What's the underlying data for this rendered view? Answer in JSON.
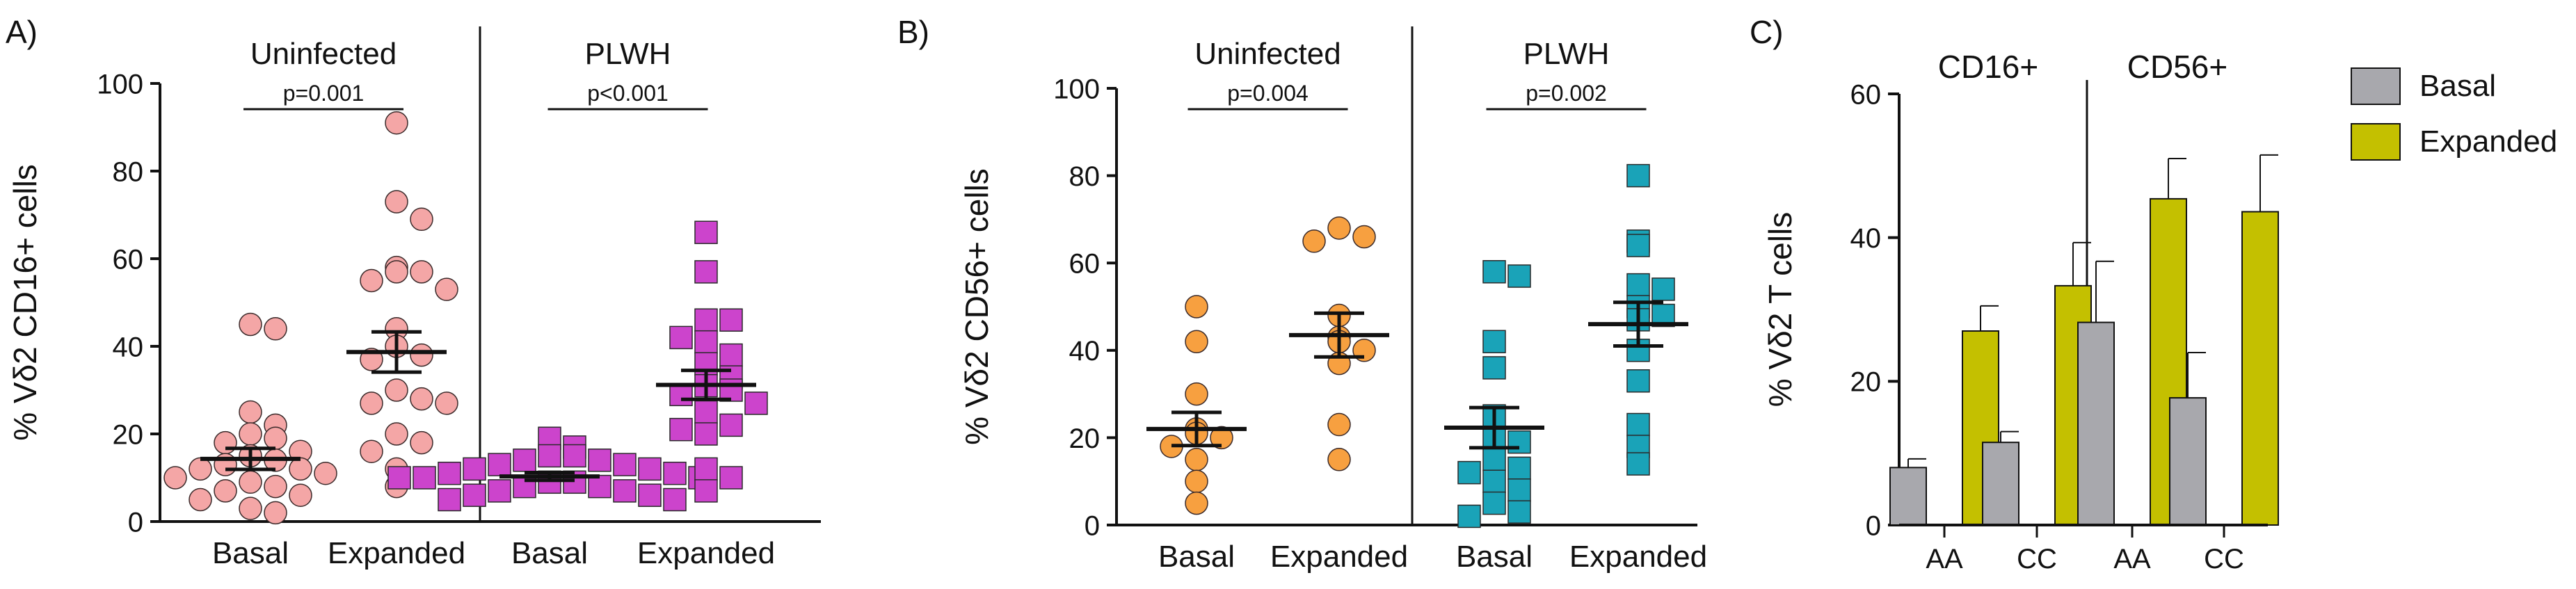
{
  "figure": {
    "background": "#ffffff"
  },
  "chart_data": [
    {
      "panel": "A)",
      "type": "scatter",
      "title": "",
      "xlabel": "",
      "ylabel": "% Vδ2 CD16+ cells",
      "ylim": [
        0,
        100
      ],
      "yticks": [
        0,
        20,
        40,
        60,
        80,
        100
      ],
      "grid": false,
      "categories": [
        "Basal",
        "Expanded",
        "Basal",
        "Expanded"
      ],
      "groups": [
        {
          "label": "Uninfected",
          "categories": [
            0,
            1
          ],
          "p_label": "p=0.001"
        },
        {
          "label": "PLWH",
          "categories": [
            2,
            3
          ],
          "p_label": "p<0.001"
        }
      ],
      "series": [
        {
          "name": "Uninfected Basal",
          "category": 0,
          "marker": "circle",
          "color": "#f4a6a6",
          "values": [
            45,
            44,
            25,
            22,
            20,
            19,
            18,
            16,
            15,
            14,
            13,
            12,
            12,
            11,
            10,
            9,
            8,
            7,
            6,
            5,
            3,
            2
          ],
          "mean": 14.3,
          "sem": 2.4
        },
        {
          "name": "Uninfected Expanded",
          "category": 1,
          "marker": "circle",
          "color": "#f4a6a6",
          "values": [
            91,
            73,
            69,
            58,
            57,
            57,
            55,
            53,
            44,
            40,
            38,
            37,
            30,
            28,
            27,
            27,
            20,
            18,
            16,
            12,
            8
          ],
          "mean": 38.7,
          "sem": 4.6
        },
        {
          "name": "PLWH Basal",
          "category": 2,
          "marker": "square",
          "color": "#cc44cc",
          "values": [
            19,
            17,
            15,
            15,
            14,
            14,
            13,
            13,
            12,
            12,
            11,
            11,
            10,
            10,
            10,
            9,
            9,
            8,
            8,
            7,
            7,
            6,
            6,
            5,
            5
          ],
          "mean": 10.3,
          "sem": 0.9
        },
        {
          "name": "PLWH Expanded",
          "category": 3,
          "marker": "square",
          "color": "#cc44cc",
          "values": [
            66,
            57,
            46,
            46,
            42,
            41,
            38,
            36,
            33,
            31,
            30,
            29,
            27,
            25,
            22,
            21,
            20,
            12,
            10,
            7
          ],
          "mean": 31.2,
          "sem": 3.3
        }
      ]
    },
    {
      "panel": "B)",
      "type": "scatter",
      "title": "",
      "xlabel": "",
      "ylabel": "% Vδ2 CD56+ cells",
      "ylim": [
        0,
        100
      ],
      "yticks": [
        0,
        20,
        40,
        60,
        80,
        100
      ],
      "grid": false,
      "categories": [
        "Basal",
        "Expanded",
        "Basal",
        "Expanded"
      ],
      "groups": [
        {
          "label": "Uninfected",
          "categories": [
            0,
            1
          ],
          "p_label": "p=0.004"
        },
        {
          "label": "PLWH",
          "categories": [
            2,
            3
          ],
          "p_label": "p=0.002"
        }
      ],
      "series": [
        {
          "name": "Uninfected Basal",
          "category": 0,
          "marker": "circle",
          "color": "#f7a040",
          "values": [
            50,
            42,
            30,
            22,
            21,
            20,
            18,
            15,
            10,
            5
          ],
          "mean": 22,
          "sem": 3.8
        },
        {
          "name": "Uninfected Expanded",
          "category": 1,
          "marker": "circle",
          "color": "#f7a040",
          "values": [
            68,
            66,
            65,
            48,
            43,
            42,
            40,
            37,
            23,
            15
          ],
          "mean": 43.5,
          "sem": 5
        },
        {
          "name": "PLWH Basal",
          "category": 2,
          "marker": "square",
          "color": "#1aa3b8",
          "values": [
            58,
            57,
            42,
            36,
            25,
            20,
            19,
            15,
            13,
            12,
            10,
            8,
            5,
            3,
            2
          ],
          "mean": 22.3,
          "sem": 4.6
        },
        {
          "name": "PLWH Expanded",
          "category": 3,
          "marker": "square",
          "color": "#1aa3b8",
          "values": [
            80,
            65,
            64,
            55,
            54,
            50,
            48,
            47,
            40,
            33,
            23,
            18,
            14
          ],
          "mean": 46,
          "sem": 5
        }
      ]
    },
    {
      "panel": "C)",
      "type": "bar",
      "title": "",
      "xlabel": "",
      "ylabel": "% Vδ2 T cells",
      "ylim": [
        0,
        60
      ],
      "yticks": [
        0,
        20,
        40,
        60
      ],
      "grid": false,
      "groups": [
        "CD16+",
        "CD56+"
      ],
      "categories": [
        "AA",
        "CC",
        "AA",
        "CC"
      ],
      "legend": {
        "position": "right"
      },
      "series": [
        {
          "name": "Basal",
          "color": "#a8a8ad",
          "values": [
            8,
            11.5,
            28.2,
            17.7
          ],
          "errors": [
            1.2,
            1.5,
            8.5,
            6.3
          ]
        },
        {
          "name": "Expanded",
          "color": "#c4c000",
          "values": [
            27,
            33.3,
            45.4,
            43.6
          ],
          "errors": [
            3.5,
            6,
            5.6,
            7.9
          ]
        }
      ]
    }
  ]
}
